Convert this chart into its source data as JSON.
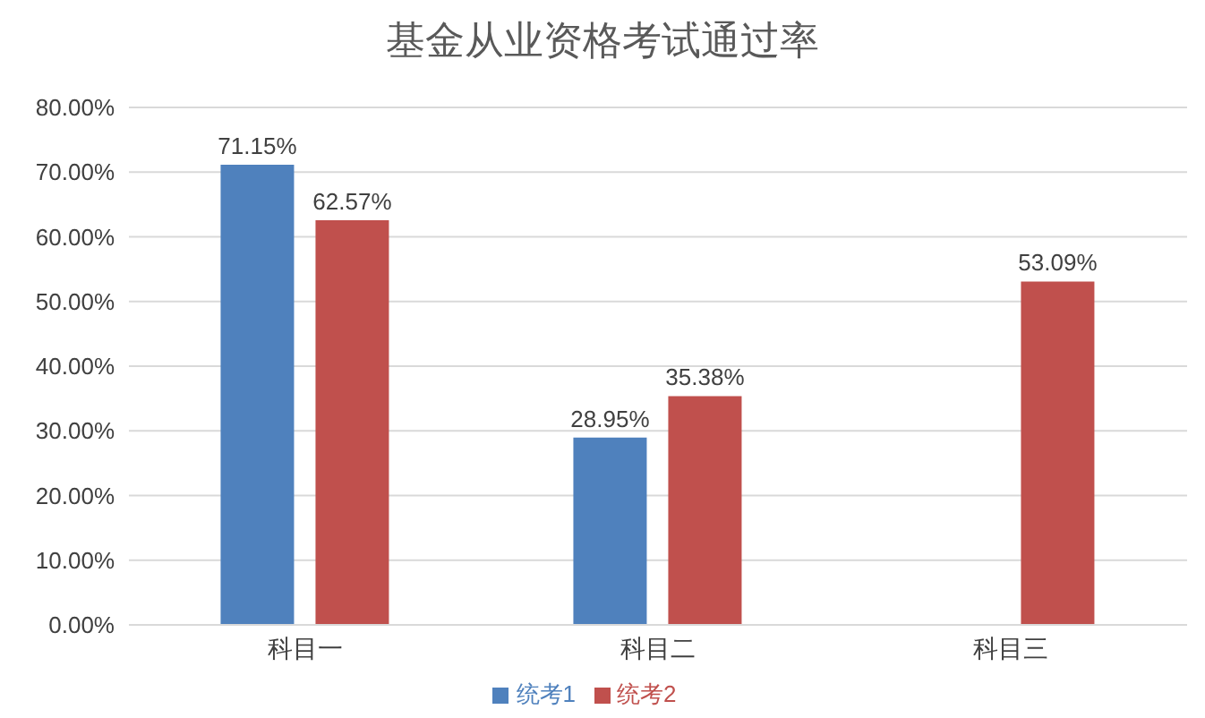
{
  "chart_data": {
    "type": "bar",
    "title": "基金从业资格考试通过率",
    "categories": [
      "科目一",
      "科目二",
      "科目三"
    ],
    "series": [
      {
        "name": "统考1",
        "color": "#4f81bd",
        "values": [
          71.15,
          28.95,
          null
        ],
        "value_labels": [
          "71.15%",
          "28.95%",
          null
        ]
      },
      {
        "name": "统考2",
        "color": "#c0504d",
        "values": [
          62.57,
          35.38,
          53.09
        ],
        "value_labels": [
          "62.57%",
          "35.38%",
          "53.09%"
        ]
      }
    ],
    "ylim": [
      0,
      80
    ],
    "yticks": [
      {
        "value": 0,
        "label": "0.00%"
      },
      {
        "value": 10,
        "label": "10.00%"
      },
      {
        "value": 20,
        "label": "20.00%"
      },
      {
        "value": 30,
        "label": "30.00%"
      },
      {
        "value": 40,
        "label": "40.00%"
      },
      {
        "value": 50,
        "label": "50.00%"
      },
      {
        "value": 60,
        "label": "60.00%"
      },
      {
        "value": 70,
        "label": "70.00%"
      },
      {
        "value": 80,
        "label": "80.00%"
      }
    ],
    "grid": "y",
    "legend": "bottom"
  }
}
